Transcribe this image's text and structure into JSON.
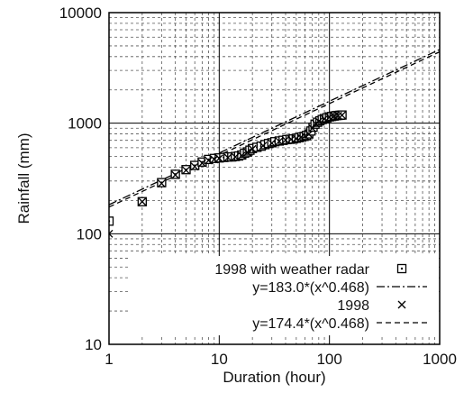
{
  "chart_data": {
    "type": "scatter",
    "title": "",
    "xlabel": "Duration (hour)",
    "ylabel": "Rainfall (mm)",
    "x_scale": "log",
    "y_scale": "log",
    "xlim": [
      1,
      1000
    ],
    "ylim": [
      10,
      10000
    ],
    "x_ticks": [
      "1",
      "10",
      "100",
      "1000"
    ],
    "y_ticks": [
      "10",
      "100",
      "1000",
      "10000"
    ],
    "grid": true,
    "legend_position": "bottom-right",
    "series": [
      {
        "name": "1998 with weather radar",
        "kind": "points",
        "marker": "square-with-dot",
        "points": [
          [
            1,
            130
          ],
          [
            2,
            195
          ],
          [
            3,
            290
          ],
          [
            4,
            345
          ],
          [
            5,
            380
          ],
          [
            6,
            415
          ],
          [
            7,
            445
          ],
          [
            8,
            470
          ],
          [
            9,
            480
          ],
          [
            10,
            485
          ],
          [
            11,
            490
          ],
          [
            12,
            495
          ],
          [
            13,
            495
          ],
          [
            14,
            500
          ],
          [
            15,
            505
          ],
          [
            16,
            515
          ],
          [
            17,
            535
          ],
          [
            18,
            550
          ],
          [
            19,
            570
          ],
          [
            20,
            590
          ],
          [
            22,
            605
          ],
          [
            24,
            620
          ],
          [
            26,
            640
          ],
          [
            28,
            655
          ],
          [
            30,
            665
          ],
          [
            32,
            680
          ],
          [
            35,
            690
          ],
          [
            38,
            700
          ],
          [
            41,
            710
          ],
          [
            44,
            715
          ],
          [
            47,
            720
          ],
          [
            50,
            730
          ],
          [
            53,
            740
          ],
          [
            56,
            750
          ],
          [
            59,
            760
          ],
          [
            62,
            775
          ],
          [
            65,
            800
          ],
          [
            68,
            850
          ],
          [
            71,
            920
          ],
          [
            74,
            980
          ],
          [
            78,
            1020
          ],
          [
            82,
            1050
          ],
          [
            86,
            1080
          ],
          [
            90,
            1100
          ],
          [
            95,
            1120
          ],
          [
            100,
            1140
          ],
          [
            105,
            1150
          ],
          [
            110,
            1160
          ],
          [
            115,
            1170
          ],
          [
            120,
            1175
          ],
          [
            125,
            1180
          ],
          [
            130,
            1185
          ]
        ]
      },
      {
        "name": "y=183.0*(x^0.468)",
        "kind": "line",
        "dash": "dash-dot",
        "a": 183.0,
        "b": 0.468
      },
      {
        "name": "1998",
        "kind": "points",
        "marker": "cross",
        "points": [
          [
            1,
            100
          ],
          [
            2,
            195
          ],
          [
            3,
            285
          ],
          [
            4,
            340
          ],
          [
            5,
            375
          ],
          [
            6,
            405
          ],
          [
            7,
            435
          ],
          [
            8,
            460
          ],
          [
            9,
            470
          ],
          [
            10,
            480
          ],
          [
            12,
            488
          ],
          [
            14,
            495
          ],
          [
            16,
            510
          ],
          [
            18,
            545
          ],
          [
            20,
            585
          ],
          [
            25,
            625
          ],
          [
            30,
            660
          ],
          [
            35,
            685
          ],
          [
            40,
            705
          ],
          [
            45,
            715
          ],
          [
            50,
            725
          ],
          [
            55,
            745
          ],
          [
            60,
            765
          ],
          [
            65,
            795
          ],
          [
            70,
            900
          ],
          [
            75,
            990
          ],
          [
            80,
            1040
          ],
          [
            90,
            1095
          ],
          [
            100,
            1135
          ],
          [
            110,
            1155
          ],
          [
            120,
            1170
          ],
          [
            130,
            1180
          ]
        ]
      },
      {
        "name": "y=174.4*(x^0.468)",
        "kind": "line",
        "dash": "dashed",
        "a": 174.4,
        "b": 0.468
      }
    ]
  }
}
